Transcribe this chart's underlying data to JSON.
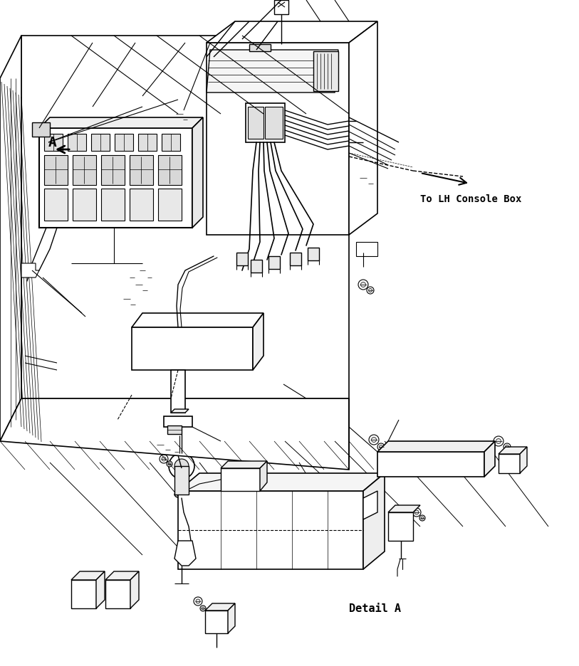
{
  "background_color": "#ffffff",
  "line_color": "#000000",
  "annotation_to_lh": "To LH Console Box",
  "annotation_detail": "Detail A",
  "annotation_a": "A",
  "fig_width": 8.13,
  "fig_height": 9.36,
  "dpi": 100
}
